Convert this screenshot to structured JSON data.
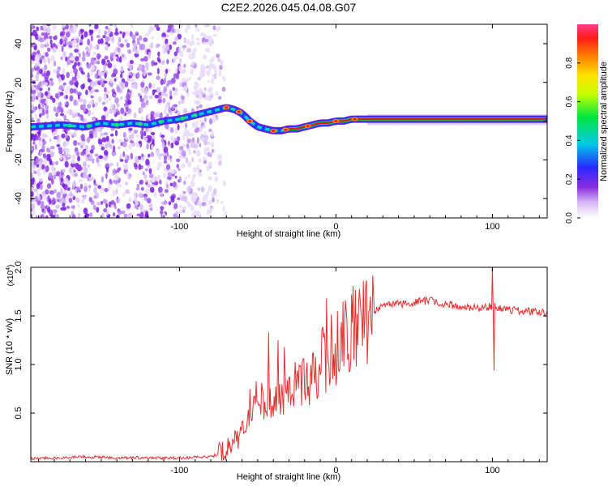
{
  "chart_data": [
    {
      "type": "heatmap",
      "title": "C2E2.2026.045.04.08.G07",
      "xlabel": "Height of straight line (km)",
      "ylabel": "Frequency (Hz)",
      "xlim": [
        -195,
        135
      ],
      "ylim": [
        -50,
        50
      ],
      "xticks": [
        -100,
        0,
        100
      ],
      "yticks": [
        -40,
        -20,
        0,
        20,
        40
      ],
      "ridge": {
        "x": [
          -195,
          -175,
          -160,
          -150,
          -140,
          -130,
          -120,
          -110,
          -100,
          -90,
          -85,
          -80,
          -75,
          -70,
          -65,
          -60,
          -55,
          -50,
          -45,
          -40,
          -35,
          -30,
          -25,
          -20,
          -15,
          -10,
          -5,
          0,
          5,
          10,
          15,
          20,
          30,
          60,
          100,
          135
        ],
        "y": [
          -3,
          -2,
          -3,
          -1,
          -2,
          -1,
          -2,
          0,
          1,
          3,
          4,
          5,
          6,
          7,
          6,
          4,
          0,
          -3,
          -4,
          -5,
          -5,
          -4,
          -4,
          -3,
          -2,
          -1,
          -1,
          0,
          0,
          1,
          1,
          1,
          1,
          1,
          1,
          1
        ]
      },
      "colorbar": {
        "label": "Normalized spectral amplitude",
        "ticks": [
          "0.0",
          "0.2",
          "0.4",
          "0.6",
          "0.8"
        ]
      }
    },
    {
      "type": "line",
      "xlabel": "Height of straight line (km)",
      "ylabel": "SNR (10 * v/v)",
      "exponent_label": "(x10",
      "exponent_sup": "4",
      "exponent_close": ")",
      "xlim": [
        -195,
        135
      ],
      "ylim": [
        0,
        2.0
      ],
      "xticks": [
        -100,
        0,
        100
      ],
      "yticks": [
        "0.5",
        "1.0",
        "1.5",
        "2.0"
      ],
      "color": "#e83030",
      "envelope": {
        "x": [
          -195,
          -160,
          -140,
          -100,
          -80,
          -75,
          -70,
          -65,
          -60,
          -55,
          -50,
          -45,
          -40,
          -35,
          -30,
          -25,
          -20,
          -15,
          -10,
          -5,
          0,
          5,
          10,
          15,
          20,
          25,
          30,
          40,
          50,
          60,
          70,
          80,
          90,
          100,
          110,
          120,
          135
        ],
        "y": [
          0.03,
          0.05,
          0.04,
          0.04,
          0.05,
          0.08,
          0.12,
          0.2,
          0.3,
          0.5,
          0.7,
          0.65,
          0.6,
          0.7,
          0.72,
          0.78,
          0.82,
          0.9,
          1.0,
          1.1,
          1.2,
          1.3,
          1.35,
          1.42,
          1.5,
          1.55,
          1.6,
          1.62,
          1.64,
          1.66,
          1.62,
          1.6,
          1.58,
          1.6,
          1.56,
          1.55,
          1.53
        ]
      },
      "spikes": [
        {
          "x": -43,
          "y": 1.33
        },
        {
          "x": -37,
          "y": 1.25
        },
        {
          "x": -33,
          "y": 1.18
        },
        {
          "x": -6,
          "y": 1.68
        },
        {
          "x": 6,
          "y": 1.66
        },
        {
          "x": 10,
          "y": 1.72
        },
        {
          "x": 22,
          "y": 1.7
        },
        {
          "x": 100,
          "y": 2.0
        },
        {
          "x": 100.8,
          "y": 0.94
        }
      ]
    }
  ]
}
